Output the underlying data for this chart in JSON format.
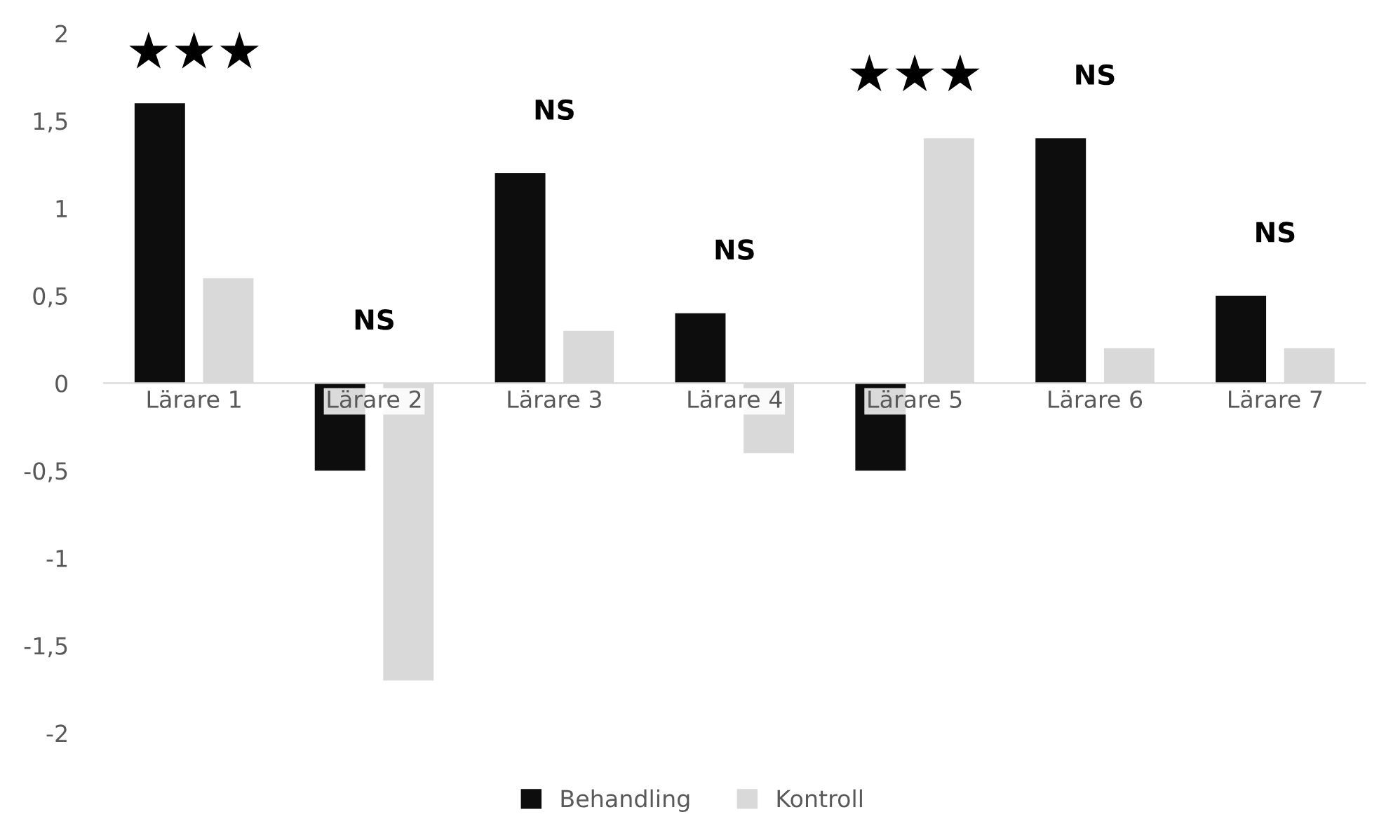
{
  "chart_data": {
    "type": "bar",
    "categories": [
      "Lärare 1",
      "Lärare 2",
      "Lärare 3",
      "Lärare 4",
      "Lärare 5",
      "Lärare 6",
      "Lärare 7"
    ],
    "series": [
      {
        "name": "Behandling",
        "color": "#0d0d0d",
        "values": [
          1.6,
          -0.5,
          1.2,
          0.4,
          -0.5,
          1.4,
          0.5
        ]
      },
      {
        "name": "Kontroll",
        "color": "#d9d9d9",
        "values": [
          0.6,
          -1.7,
          0.3,
          -0.4,
          1.4,
          0.2,
          0.2
        ]
      }
    ],
    "ylim": [
      -2,
      2
    ],
    "yticks": [
      2,
      {
        "value": 1.5,
        "label": "1,5"
      },
      1,
      {
        "value": 0.5,
        "label": "0,5"
      },
      0,
      {
        "value": -0.5,
        "label": "-0,5"
      },
      -1,
      {
        "value": -1.5,
        "label": "-1,5"
      },
      -2
    ],
    "annotations": [
      "★★★",
      "NS",
      "NS",
      "NS",
      "★★★",
      "NS",
      "NS"
    ],
    "grid": false,
    "legend": "bottom"
  }
}
